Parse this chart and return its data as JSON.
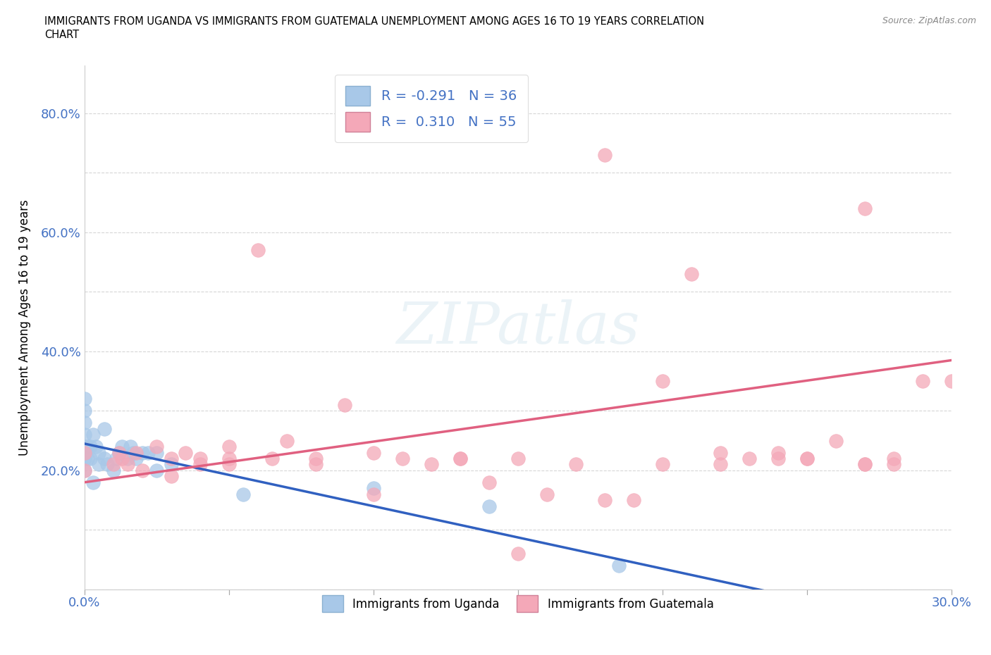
{
  "title_line1": "IMMIGRANTS FROM UGANDA VS IMMIGRANTS FROM GUATEMALA UNEMPLOYMENT AMONG AGES 16 TO 19 YEARS CORRELATION",
  "title_line2": "CHART",
  "source": "Source: ZipAtlas.com",
  "ylabel": "Unemployment Among Ages 16 to 19 years",
  "xlim": [
    0.0,
    0.3
  ],
  "ylim": [
    0.0,
    0.88
  ],
  "xticks": [
    0.0,
    0.05,
    0.1,
    0.15,
    0.2,
    0.25,
    0.3
  ],
  "xtick_labels": [
    "0.0%",
    "",
    "",
    "",
    "",
    "",
    "30.0%"
  ],
  "yticks": [
    0.0,
    0.1,
    0.2,
    0.3,
    0.4,
    0.5,
    0.6,
    0.7,
    0.8
  ],
  "ytick_labels": [
    "",
    "",
    "20.0%",
    "",
    "40.0%",
    "",
    "60.0%",
    "",
    "80.0%"
  ],
  "uganda_color": "#a8c8e8",
  "guatemala_color": "#f4a8b8",
  "uganda_line_color": "#3060c0",
  "guatemala_line_color": "#e06080",
  "R_uganda": -0.291,
  "N_uganda": 36,
  "R_guatemala": 0.31,
  "N_guatemala": 55,
  "watermark": "ZIPatlas",
  "uganda_x": [
    0.0,
    0.0,
    0.0,
    0.0,
    0.0,
    0.0,
    0.0,
    0.001,
    0.001,
    0.002,
    0.002,
    0.003,
    0.003,
    0.004,
    0.005,
    0.005,
    0.007,
    0.007,
    0.008,
    0.01,
    0.011,
    0.012,
    0.013,
    0.015,
    0.016,
    0.017,
    0.018,
    0.02,
    0.022,
    0.025,
    0.025,
    0.03,
    0.055,
    0.1,
    0.14,
    0.185
  ],
  "uganda_y": [
    0.2,
    0.22,
    0.24,
    0.26,
    0.28,
    0.3,
    0.32,
    0.22,
    0.24,
    0.22,
    0.24,
    0.18,
    0.26,
    0.24,
    0.21,
    0.23,
    0.22,
    0.27,
    0.21,
    0.2,
    0.22,
    0.23,
    0.24,
    0.22,
    0.24,
    0.23,
    0.22,
    0.23,
    0.23,
    0.2,
    0.23,
    0.21,
    0.16,
    0.17,
    0.14,
    0.04
  ],
  "guatemala_x": [
    0.0,
    0.0,
    0.01,
    0.012,
    0.013,
    0.015,
    0.018,
    0.02,
    0.025,
    0.03,
    0.03,
    0.035,
    0.04,
    0.04,
    0.05,
    0.05,
    0.06,
    0.065,
    0.07,
    0.08,
    0.09,
    0.1,
    0.1,
    0.11,
    0.12,
    0.13,
    0.14,
    0.15,
    0.16,
    0.17,
    0.18,
    0.19,
    0.2,
    0.21,
    0.22,
    0.23,
    0.24,
    0.25,
    0.26,
    0.27,
    0.27,
    0.28,
    0.29,
    0.3,
    0.15,
    0.18,
    0.22,
    0.25,
    0.28,
    0.05,
    0.08,
    0.13,
    0.2,
    0.24,
    0.27
  ],
  "guatemala_y": [
    0.2,
    0.23,
    0.21,
    0.23,
    0.22,
    0.21,
    0.23,
    0.2,
    0.24,
    0.19,
    0.22,
    0.23,
    0.21,
    0.22,
    0.24,
    0.21,
    0.57,
    0.22,
    0.25,
    0.21,
    0.31,
    0.23,
    0.16,
    0.22,
    0.21,
    0.22,
    0.18,
    0.22,
    0.16,
    0.21,
    0.15,
    0.15,
    0.35,
    0.53,
    0.23,
    0.22,
    0.23,
    0.22,
    0.25,
    0.64,
    0.21,
    0.22,
    0.35,
    0.35,
    0.06,
    0.73,
    0.21,
    0.22,
    0.21,
    0.22,
    0.22,
    0.22,
    0.21,
    0.22,
    0.21
  ]
}
